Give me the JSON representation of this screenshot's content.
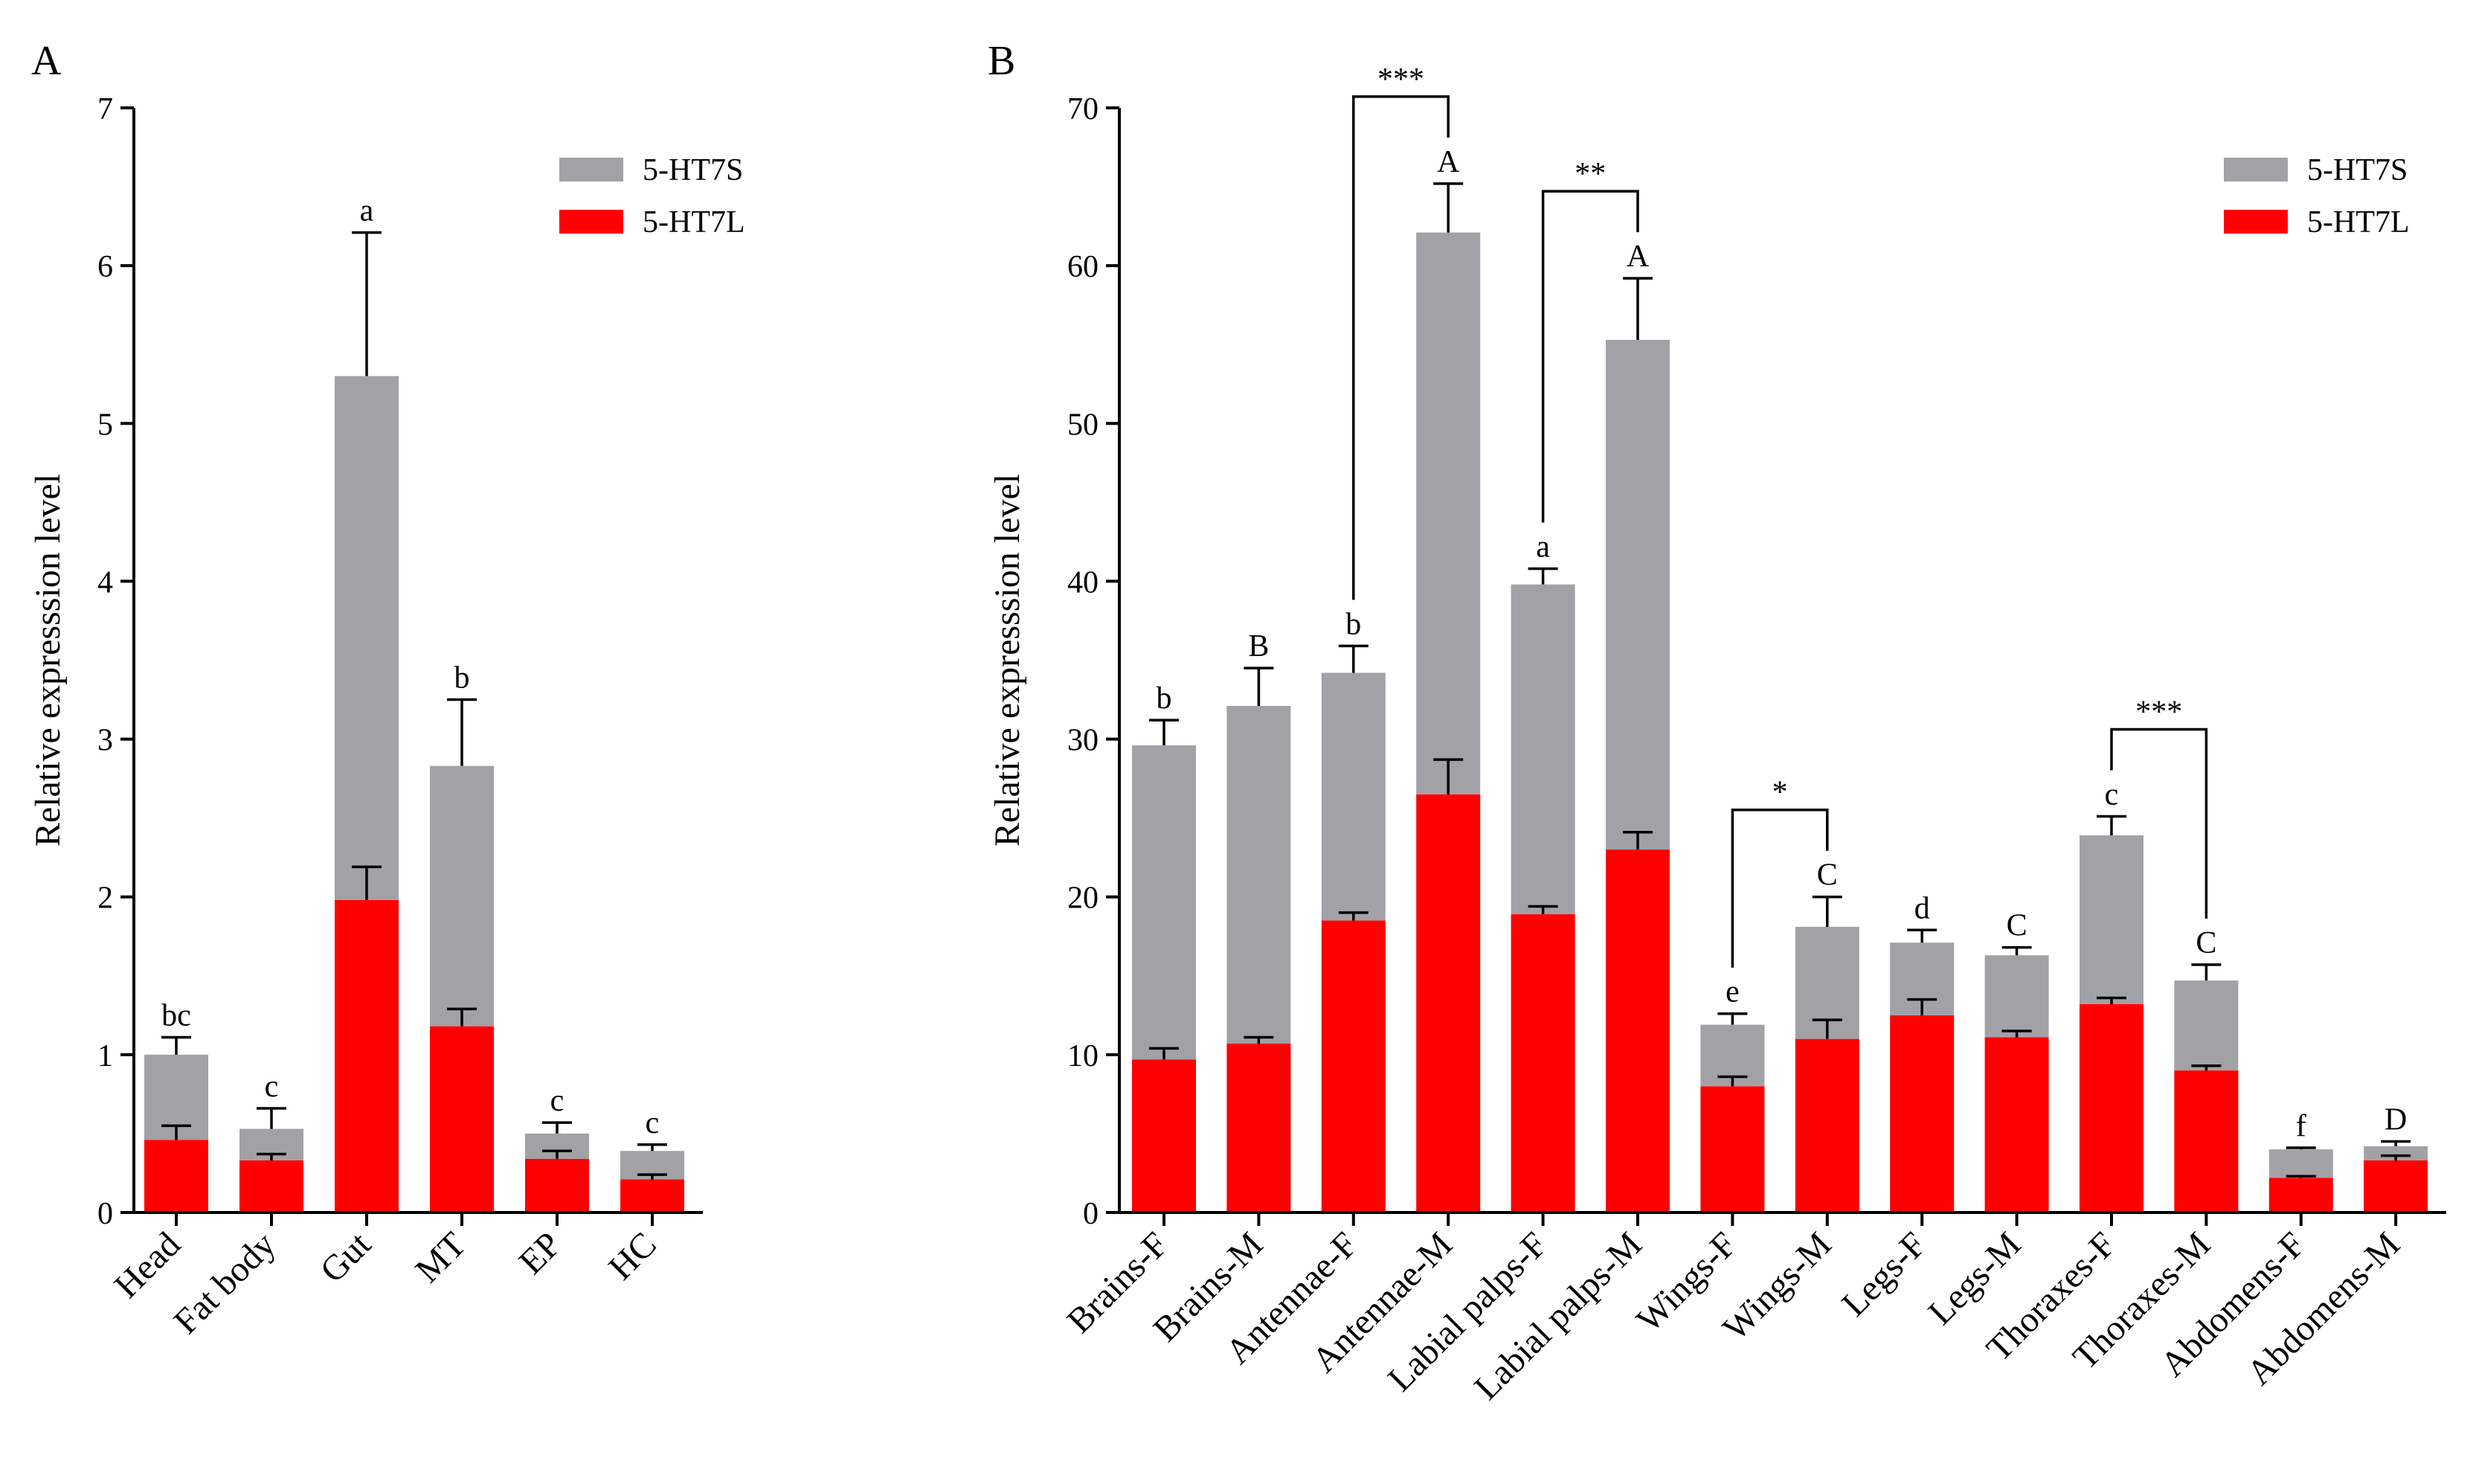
{
  "colors": {
    "short": "#a2a1a6",
    "long": "#ff0000",
    "axis": "#000000"
  },
  "chart_data": [
    {
      "panel": "A",
      "type": "bar",
      "stacked": true,
      "ylabel": "Relative expresssion level",
      "ylim": [
        0,
        7
      ],
      "yticks": [
        0,
        1,
        2,
        3,
        4,
        5,
        6,
        7
      ],
      "legend": [
        "5-HT7S",
        "5-HT7L"
      ],
      "categories": [
        "Head",
        "Fat body",
        "Gut",
        "MT",
        "EP",
        "HC"
      ],
      "series": [
        {
          "name": "5-HT7L",
          "values": [
            0.46,
            0.33,
            1.98,
            1.18,
            0.34,
            0.21
          ],
          "errors": [
            0.09,
            0.04,
            0.21,
            0.11,
            0.05,
            0.03
          ]
        },
        {
          "name": "5-HT7S",
          "values": [
            0.54,
            0.2,
            3.32,
            1.65,
            0.16,
            0.18
          ],
          "errors": [
            0.11,
            0.13,
            0.91,
            0.42,
            0.07,
            0.04
          ]
        }
      ],
      "letters": [
        "bc",
        "c",
        "a",
        "b",
        "c",
        "c"
      ],
      "brackets": []
    },
    {
      "panel": "B",
      "type": "bar",
      "stacked": true,
      "ylabel": "Relative expresssion level",
      "ylim": [
        0,
        70
      ],
      "yticks": [
        0,
        10,
        20,
        30,
        40,
        50,
        60,
        70
      ],
      "legend": [
        "5-HT7S",
        "5-HT7L"
      ],
      "categories": [
        "Brains-F",
        "Brains-M",
        "Antennae-F",
        "Antennae-M",
        "Labial palps-F",
        "Labial palps-M",
        "Wings-F",
        "Wings-M",
        "Legs-F",
        "Legs-M",
        "Thoraxes-F",
        "Thoraxes-M",
        "Abdomens-F",
        "Abdomens-M"
      ],
      "series": [
        {
          "name": "5-HT7L",
          "values": [
            9.7,
            10.7,
            18.5,
            26.5,
            18.9,
            23.0,
            8.0,
            11.0,
            12.5,
            11.1,
            13.2,
            9.0,
            2.2,
            3.3
          ],
          "errors": [
            0.7,
            0.4,
            0.5,
            2.2,
            0.5,
            1.1,
            0.6,
            1.2,
            1.0,
            0.4,
            0.4,
            0.3,
            0.1,
            0.3
          ]
        },
        {
          "name": "5-HT7S",
          "values": [
            19.9,
            21.4,
            15.7,
            35.6,
            20.9,
            32.3,
            3.9,
            7.1,
            4.6,
            5.2,
            10.7,
            5.7,
            1.8,
            0.9
          ],
          "errors": [
            1.6,
            2.4,
            1.7,
            3.1,
            1.0,
            3.9,
            0.7,
            1.9,
            0.8,
            0.5,
            1.2,
            1.0,
            0.1,
            0.3
          ]
        }
      ],
      "letters": [
        "b",
        "B",
        "b",
        "A",
        "a",
        "A",
        "e",
        "C",
        "d",
        "C",
        "c",
        "C",
        "f",
        "D"
      ],
      "brackets": [
        {
          "from": 2,
          "to": 3,
          "label": "***"
        },
        {
          "from": 4,
          "to": 5,
          "label": "**"
        },
        {
          "from": 6,
          "to": 7,
          "label": "*"
        },
        {
          "from": 10,
          "to": 11,
          "label": "***"
        }
      ]
    }
  ]
}
